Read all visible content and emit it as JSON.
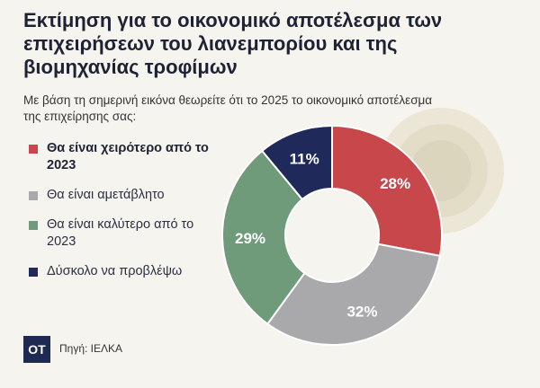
{
  "colors": {
    "worse": "#c8474a",
    "same": "#a9a9ab",
    "better": "#6f9b7b",
    "unsure": "#1f2a5a",
    "background": "#f6f4ee"
  },
  "header": {
    "title": "Εκτίμηση για το οικονομικό αποτέλεσμα των επιχειρήσεων του λιανεμπορίου και της βιομηχανίας τροφίμων",
    "question": "Με βάση τη σημερινή εικόνα θεωρείτε ότι το 2025 το οικονομικό αποτέλεσμα της επιχείρησης σας:"
  },
  "chart_data": {
    "type": "pie",
    "donut": true,
    "series": [
      {
        "name": "Θα είναι χειρότερο από το 2023",
        "value": 28,
        "label": "28%",
        "color": "#c8474a"
      },
      {
        "name": "Θα είναι αμετάβλητο",
        "value": 32,
        "label": "32%",
        "color": "#a9a9ab"
      },
      {
        "name": "Θα είναι καλύτερο από το 2023",
        "value": 29,
        "label": "29%",
        "color": "#6f9b7b"
      },
      {
        "name": "Δύσκολο να προβλέψω",
        "value": 11,
        "label": "11%",
        "color": "#1f2a5a"
      }
    ],
    "legend_position": "left"
  },
  "legend": {
    "items": [
      {
        "label": "Θα είναι χειρότερο από το 2023",
        "color": "#c8474a",
        "bold": true
      },
      {
        "label": "Θα είναι αμετάβλητο",
        "color": "#a9a9ab",
        "bold": false
      },
      {
        "label": "Θα είναι καλύτερο από το 2023",
        "color": "#6f9b7b",
        "bold": false
      },
      {
        "label": "Δύσκολο να προβλέψω",
        "color": "#1f2a5a",
        "bold": false
      }
    ]
  },
  "footer": {
    "logo": "OT",
    "source": "Πηγή: ΙΕΛΚΑ"
  }
}
